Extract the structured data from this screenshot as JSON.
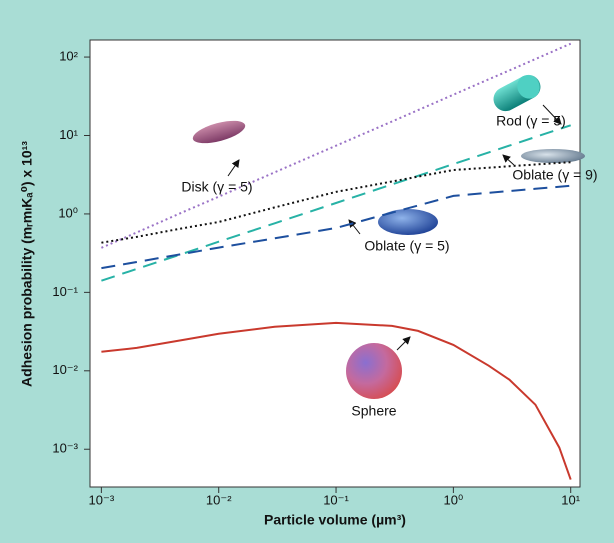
{
  "chart_data": {
    "type": "line",
    "xlabel": "Particle volume (µm³)",
    "ylabel": "Adhesion probability (mᵣmₗKₐ⁰) x 10¹³",
    "log_x": true,
    "log_y": true,
    "xlim": [
      0.0008,
      12
    ],
    "ylim": [
      0.00033,
      165
    ],
    "xticks": [
      {
        "value": 0.001,
        "label": "10⁻³"
      },
      {
        "value": 0.01,
        "label": "10⁻²"
      },
      {
        "value": 0.1,
        "label": "10⁻¹"
      },
      {
        "value": 1,
        "label": "10⁰"
      },
      {
        "value": 10,
        "label": "10¹"
      }
    ],
    "yticks": [
      {
        "value": 0.001,
        "label": "10⁻³"
      },
      {
        "value": 0.01,
        "label": "10⁻²"
      },
      {
        "value": 0.1,
        "label": "10⁻¹"
      },
      {
        "value": 1,
        "label": "10⁰"
      },
      {
        "value": 10,
        "label": "10¹"
      },
      {
        "value": 100,
        "label": "10²"
      }
    ],
    "x": [
      0.001,
      0.002,
      0.005,
      0.01,
      0.03,
      0.1,
      0.3,
      0.5,
      1,
      2,
      3,
      5,
      8,
      10
    ],
    "series": [
      {
        "name": "Disk (γ = 5)",
        "color": "#9a72c6",
        "style": "dotted",
        "values": [
          0.37,
          0.58,
          1.06,
          1.66,
          3.39,
          7.41,
          15.1,
          21.1,
          33.1,
          52,
          67.6,
          94.2,
          128,
          148
        ]
      },
      {
        "name": "Rod (γ = 5)",
        "color": "#27b2a6",
        "style": "dashed",
        "values": [
          0.141,
          0.199,
          0.313,
          0.442,
          0.76,
          1.38,
          2.38,
          3.06,
          4.32,
          6.08,
          7.43,
          9.57,
          12.1,
          13.5
        ]
      },
      {
        "name": "Oblate (γ = 9)",
        "color": "#111111",
        "style": "dotted",
        "values": [
          0.43,
          0.51,
          0.66,
          0.79,
          1.21,
          1.91,
          2.59,
          2.99,
          3.63,
          3.89,
          4.06,
          4.27,
          4.47,
          4.57
        ]
      },
      {
        "name": "Oblate (γ = 5)",
        "color": "#1d4f9e",
        "style": "dashed",
        "values": [
          0.204,
          0.244,
          0.31,
          0.372,
          0.489,
          0.661,
          1.04,
          1.28,
          1.7,
          1.86,
          1.96,
          2.09,
          2.22,
          2.29
        ]
      },
      {
        "name": "Sphere",
        "color": "#c9392d",
        "style": "solid",
        "values": [
          0.0175,
          0.0196,
          0.0248,
          0.0296,
          0.0364,
          0.0408,
          0.0374,
          0.0323,
          0.0214,
          0.0116,
          0.0077,
          0.0037,
          0.00105,
          0.00041
        ]
      }
    ]
  }
}
